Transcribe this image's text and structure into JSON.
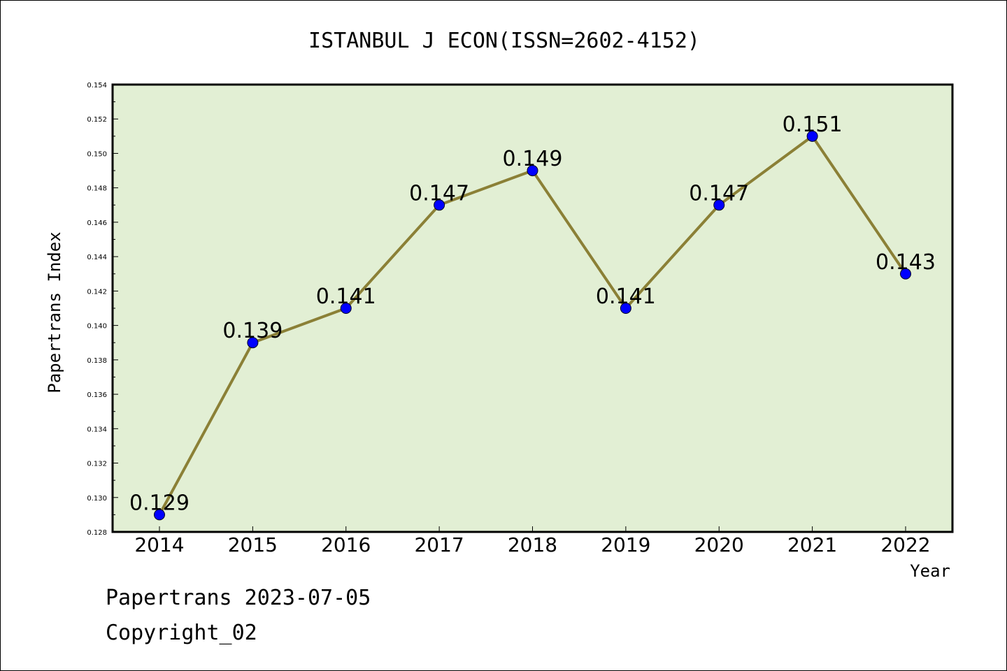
{
  "chart_data": {
    "type": "line",
    "title": "ISTANBUL J ECON(ISSN=2602-4152)",
    "xlabel": "Year",
    "ylabel": "Papertrans Index",
    "x": [
      "2014",
      "2015",
      "2016",
      "2017",
      "2018",
      "2019",
      "2020",
      "2021",
      "2022"
    ],
    "values": [
      0.129,
      0.139,
      0.141,
      0.147,
      0.149,
      0.141,
      0.147,
      0.151,
      0.143
    ],
    "data_labels": [
      "0.129",
      "0.139",
      "0.141",
      "0.147",
      "0.149",
      "0.141",
      "0.147",
      "0.151",
      "0.143"
    ],
    "ylim": [
      0.128,
      0.154
    ],
    "yticks": [
      "0.128",
      "0.130",
      "0.132",
      "0.134",
      "0.136",
      "0.138",
      "0.140",
      "0.142",
      "0.144",
      "0.146",
      "0.148",
      "0.150",
      "0.152",
      "0.154"
    ],
    "grid": false,
    "colors": {
      "plot_background": "#e2efd4",
      "line": "#8b8036",
      "marker": "#0000ff"
    }
  },
  "footer": {
    "line1": "Papertrans 2023-07-05",
    "line2": "Copyright_02"
  }
}
